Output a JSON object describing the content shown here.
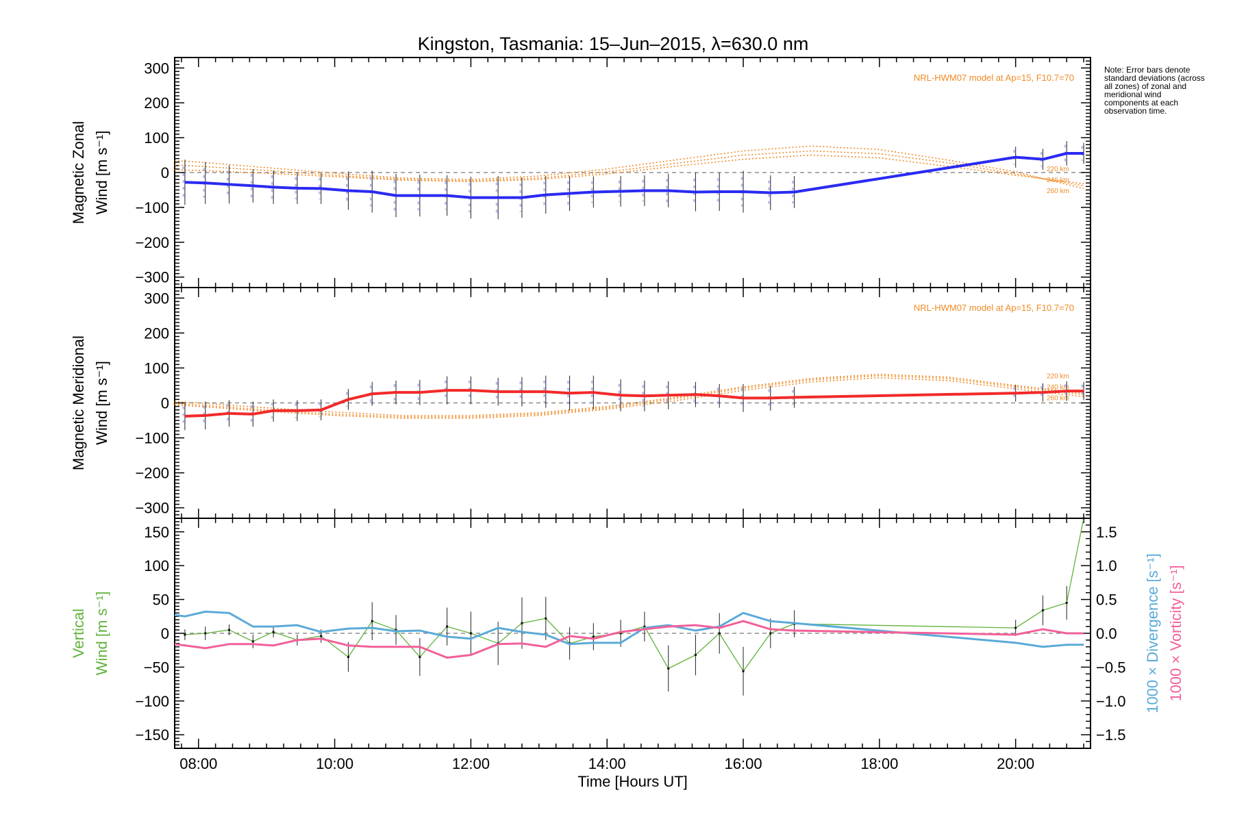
{
  "title": "Kingston, Tasmania: 15–Jun–2015, λ=630.0 nm",
  "note": "Note: Error bars denote standard deviations (across all zones) of zonal and meridional wind components at each observation time.",
  "colors": {
    "zonal": "#2a2af2",
    "meridional": "#f22a2a",
    "model": "#f08a24",
    "vertical": "#5fb23a",
    "divergence": "#5aaad8",
    "vorticity": "#f2609a",
    "sample": "#aaaaee",
    "errorbar": "#333333"
  },
  "chart_data": [
    {
      "id": "zonal",
      "type": "line",
      "ylabel_line1": "Magnetic Zonal",
      "ylabel_line2": "Wind [m s⁻¹]",
      "ylim": [
        -330,
        330
      ],
      "yticks": [
        -300,
        -200,
        -100,
        0,
        100,
        200,
        300
      ],
      "ytick_labels": [
        "−300",
        "−200",
        "−100",
        "0",
        "100",
        "200",
        "300"
      ],
      "zero_line": true,
      "model_label": "NRL-HWM07 model at Ap=15, F10.7=70",
      "model_heights": [
        "220 km",
        "240 km",
        "260 km"
      ],
      "model_curves": [
        {
          "name": "220 km",
          "x": [
            7.65,
            8,
            9,
            10,
            11,
            12,
            13,
            14,
            15,
            16,
            17,
            18,
            19,
            20,
            21
          ],
          "y": [
            8,
            6,
            -2,
            -12,
            -22,
            -26,
            -20,
            -4,
            18,
            38,
            50,
            42,
            18,
            -8,
            -32
          ]
        },
        {
          "name": "240 km",
          "x": [
            7.65,
            8,
            9,
            10,
            11,
            12,
            13,
            14,
            15,
            16,
            17,
            18,
            19,
            20,
            21
          ],
          "y": [
            22,
            18,
            6,
            -8,
            -20,
            -24,
            -16,
            2,
            26,
            50,
            62,
            54,
            28,
            -4,
            -38
          ]
        },
        {
          "name": "260 km",
          "x": [
            7.65,
            8,
            9,
            10,
            11,
            12,
            13,
            14,
            15,
            16,
            17,
            18,
            19,
            20,
            21
          ],
          "y": [
            34,
            30,
            14,
            -2,
            -16,
            -20,
            -10,
            10,
            36,
            62,
            76,
            66,
            36,
            2,
            -46
          ]
        }
      ],
      "series": [
        {
          "name": "Zonal wind",
          "x": [
            7.8,
            8.1,
            8.45,
            8.8,
            9.1,
            9.45,
            9.8,
            10.2,
            10.55,
            10.9,
            11.25,
            11.65,
            12.0,
            12.4,
            12.75,
            13.1,
            13.45,
            13.8,
            14.2,
            14.55,
            14.9,
            15.3,
            15.65,
            16.0,
            16.4,
            16.75,
            20.0,
            20.4,
            20.75,
            21.0
          ],
          "y": [
            -28,
            -30,
            -34,
            -38,
            -42,
            -45,
            -46,
            -52,
            -55,
            -66,
            -66,
            -66,
            -72,
            -72,
            -72,
            -64,
            -60,
            -56,
            -54,
            -52,
            -52,
            -56,
            -55,
            -55,
            -58,
            -56,
            44,
            38,
            55,
            55
          ],
          "err": [
            65,
            60,
            55,
            48,
            48,
            45,
            44,
            55,
            60,
            62,
            60,
            58,
            60,
            62,
            58,
            54,
            50,
            45,
            44,
            44,
            48,
            55,
            55,
            60,
            50,
            46,
            30,
            30,
            35,
            30
          ]
        }
      ]
    },
    {
      "id": "meridional",
      "type": "line",
      "ylabel_line1": "Magnetic Meridional",
      "ylabel_line2": "Wind [m s⁻¹]",
      "ylim": [
        -330,
        330
      ],
      "yticks": [
        -300,
        -200,
        -100,
        0,
        100,
        200,
        300
      ],
      "ytick_labels": [
        "−300",
        "−200",
        "−100",
        "0",
        "100",
        "200",
        "300"
      ],
      "zero_line": true,
      "model_label": "NRL-HWM07 model at Ap=15, F10.7=70",
      "model_heights": [
        "220 km",
        "240 km",
        "260 km"
      ],
      "model_curves": [
        {
          "name": "220 km",
          "x": [
            7.65,
            8,
            9,
            10,
            11,
            12,
            13,
            14,
            15,
            16,
            17,
            18,
            19,
            20,
            21
          ],
          "y": [
            -6,
            -10,
            -24,
            -36,
            -44,
            -44,
            -36,
            -18,
            6,
            36,
            60,
            72,
            64,
            40,
            18
          ]
        },
        {
          "name": "240 km",
          "x": [
            7.65,
            8,
            9,
            10,
            11,
            12,
            13,
            14,
            15,
            16,
            17,
            18,
            19,
            20,
            21
          ],
          "y": [
            -2,
            -6,
            -20,
            -32,
            -40,
            -40,
            -32,
            -14,
            12,
            42,
            66,
            78,
            70,
            46,
            24
          ]
        },
        {
          "name": "260 km",
          "x": [
            7.65,
            8,
            9,
            10,
            11,
            12,
            13,
            14,
            15,
            16,
            17,
            18,
            19,
            20,
            21
          ],
          "y": [
            4,
            0,
            -14,
            -26,
            -36,
            -36,
            -28,
            -10,
            16,
            46,
            70,
            82,
            74,
            50,
            28
          ]
        }
      ],
      "series": [
        {
          "name": "Meridional wind",
          "x": [
            7.8,
            8.1,
            8.45,
            8.8,
            9.1,
            9.45,
            9.8,
            10.2,
            10.55,
            10.9,
            11.25,
            11.65,
            12.0,
            12.4,
            12.75,
            13.1,
            13.45,
            13.8,
            14.2,
            14.55,
            14.9,
            15.3,
            15.65,
            16.0,
            16.4,
            16.75,
            20.0,
            20.4,
            20.75,
            21.0
          ],
          "y": [
            -38,
            -36,
            -30,
            -32,
            -22,
            -22,
            -20,
            10,
            26,
            30,
            30,
            36,
            36,
            32,
            32,
            32,
            28,
            30,
            22,
            20,
            22,
            24,
            20,
            14,
            14,
            16,
            28,
            30,
            34,
            34
          ],
          "err": [
            40,
            40,
            38,
            36,
            32,
            30,
            30,
            30,
            34,
            34,
            36,
            40,
            40,
            40,
            42,
            46,
            50,
            48,
            46,
            44,
            40,
            36,
            34,
            40,
            36,
            30,
            24,
            26,
            28,
            26
          ]
        }
      ]
    },
    {
      "id": "vertical",
      "type": "line",
      "ylabel_line1": "Vertical",
      "ylabel_line2": "Wind [m s⁻¹]",
      "ylim": [
        -170,
        170
      ],
      "yticks": [
        -150,
        -100,
        -50,
        0,
        50,
        100,
        150
      ],
      "ytick_labels": [
        "−150",
        "−100",
        "−50",
        "0",
        "50",
        "100",
        "150"
      ],
      "y2label_divergence": "1000 × Divergence [s⁻¹]",
      "y2label_vorticity": "1000 × Vorticity [s⁻¹]",
      "y2lim": [
        -1.7,
        1.7
      ],
      "y2ticks": [
        -1.5,
        -1.0,
        -0.5,
        0.0,
        0.5,
        1.0,
        1.5
      ],
      "y2tick_labels": [
        "−1.5",
        "−1.0",
        "−0.5",
        "0.0",
        "0.5",
        "1.0",
        "1.5"
      ],
      "zero_line": true,
      "xlabel": "Time [Hours UT]",
      "xlim": [
        7.65,
        21.1
      ],
      "xticks": [
        8,
        10,
        12,
        14,
        16,
        18,
        20
      ],
      "xtick_labels": [
        "08:00",
        "10:00",
        "12:00",
        "14:00",
        "16:00",
        "18:00",
        "20:00"
      ],
      "series": [
        {
          "name": "Vertical wind",
          "axis": "left",
          "x": [
            7.8,
            8.1,
            8.45,
            8.8,
            9.1,
            9.45,
            9.8,
            10.2,
            10.55,
            10.9,
            11.25,
            11.65,
            12.0,
            12.4,
            12.75,
            13.1,
            13.45,
            13.8,
            14.2,
            14.55,
            14.9,
            15.3,
            15.65,
            16.0,
            16.4,
            16.75,
            20.0,
            20.4,
            20.75,
            21.0
          ],
          "y": [
            -2,
            0,
            5,
            -12,
            2,
            -10,
            -4,
            -35,
            18,
            5,
            -35,
            10,
            0,
            -15,
            15,
            22,
            -15,
            -5,
            0,
            10,
            -52,
            -32,
            0,
            -56,
            0,
            14,
            8,
            34,
            45,
            170
          ],
          "err": [
            8,
            10,
            8,
            10,
            8,
            8,
            10,
            22,
            28,
            22,
            28,
            28,
            32,
            32,
            38,
            32,
            24,
            20,
            20,
            22,
            34,
            30,
            30,
            36,
            22,
            20,
            12,
            22,
            25,
            0
          ]
        },
        {
          "name": "Divergence",
          "axis": "right",
          "x": [
            7.65,
            7.8,
            8.1,
            8.45,
            8.8,
            9.1,
            9.45,
            9.8,
            10.2,
            10.55,
            10.9,
            11.25,
            11.65,
            12.0,
            12.4,
            12.75,
            13.1,
            13.45,
            13.8,
            14.2,
            14.55,
            14.9,
            15.3,
            15.65,
            16.0,
            16.4,
            16.75,
            20.0,
            20.4,
            20.75,
            21.0
          ],
          "y": [
            0.27,
            0.25,
            0.32,
            0.3,
            0.1,
            0.1,
            0.12,
            0.02,
            0.07,
            0.08,
            0.03,
            0.04,
            -0.05,
            -0.08,
            0.08,
            0.02,
            -0.02,
            -0.16,
            -0.14,
            -0.14,
            0.08,
            0.12,
            0.04,
            0.1,
            0.3,
            0.18,
            0.15,
            -0.14,
            -0.2,
            -0.17,
            -0.17
          ]
        },
        {
          "name": "Vorticity",
          "axis": "right",
          "x": [
            7.65,
            7.8,
            8.1,
            8.45,
            8.8,
            9.1,
            9.45,
            9.8,
            10.2,
            10.55,
            10.9,
            11.25,
            11.65,
            12.0,
            12.4,
            12.75,
            13.1,
            13.45,
            13.8,
            14.2,
            14.55,
            14.9,
            15.3,
            15.65,
            16.0,
            16.4,
            16.75,
            20.0,
            20.4,
            20.75,
            21.0
          ],
          "y": [
            -0.16,
            -0.18,
            -0.22,
            -0.16,
            -0.16,
            -0.18,
            -0.1,
            -0.08,
            -0.18,
            -0.2,
            -0.2,
            -0.2,
            -0.36,
            -0.32,
            -0.16,
            -0.15,
            -0.2,
            -0.04,
            -0.08,
            0.02,
            0.06,
            0.1,
            0.12,
            0.08,
            0.18,
            0.06,
            0.04,
            -0.02,
            0.06,
            0.0,
            0.0
          ]
        }
      ]
    }
  ]
}
